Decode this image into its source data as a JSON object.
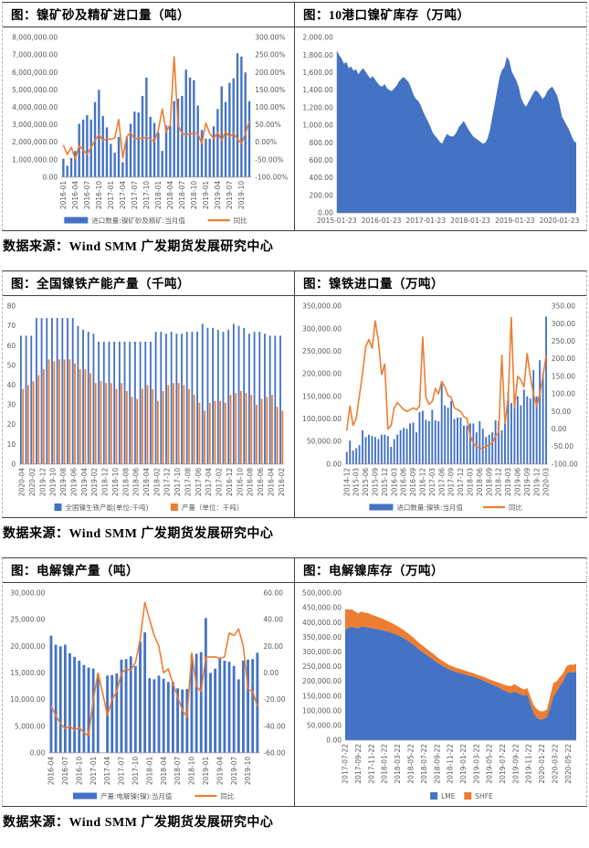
{
  "page": {
    "source_label": "数据来源：Wind SMM 广发期货发展研究中心",
    "colors": {
      "bar_blue": "#4472C4",
      "line_orange": "#ED7D31",
      "axis_text": "#595959"
    }
  },
  "charts": [
    {
      "title": "图：镍矿砂及精矿进口量（吨）",
      "chart_data": {
        "type": "bar-line",
        "bar_color": "#4472C4",
        "line_color": "#ED7D31",
        "left_axis": {
          "min": 0,
          "max": 8000000,
          "step": 1000000,
          "format": "num2"
        },
        "right_axis": {
          "min": -100,
          "max": 300,
          "step": 50,
          "format": "pct2"
        },
        "tick_every": 3,
        "x_tick_labels": [
          "2016-01",
          "2016-04",
          "2016-07",
          "2016-10",
          "2017-01",
          "2017-04",
          "2017-07",
          "2017-10",
          "2018-01",
          "2018-04",
          "2018-07",
          "2018-10",
          "2019-01",
          "2019-04",
          "2019-07",
          "2019-10"
        ],
        "bars": [
          1050000,
          650000,
          1100000,
          1500000,
          3050000,
          3300000,
          3550000,
          3300000,
          4300000,
          5000000,
          3500000,
          2850000,
          1900000,
          1400000,
          2300000,
          850000,
          2300000,
          3050000,
          3750000,
          3700000,
          4650000,
          5700000,
          3450000,
          3100000,
          2550000,
          1500000,
          2950000,
          2950000,
          4350000,
          4500000,
          4650000,
          6150000,
          5700000,
          5550000,
          4100000,
          2700000,
          2200000,
          2200000,
          2900000,
          3900000,
          5200000,
          4300000,
          5400000,
          5650000,
          7100000,
          6900000,
          6000000,
          4350000
        ],
        "line": [
          -8,
          -35,
          -15,
          -48,
          -10,
          -22,
          -35,
          -15,
          5,
          22,
          5,
          10,
          8,
          12,
          65,
          -45,
          15,
          28,
          8,
          12,
          10,
          15,
          8,
          2,
          35,
          95,
          30,
          50,
          245,
          48,
          25,
          20,
          25,
          25,
          25,
          -5,
          55,
          25,
          10,
          28,
          5,
          30,
          15,
          25,
          10,
          -5,
          25,
          60
        ],
        "legend": [
          {
            "swatch": "bar",
            "color": "#4472C4",
            "label": "进口数量:镍矿砂及精矿:当月值"
          },
          {
            "swatch": "line",
            "color": "#ED7D31",
            "label": "同比"
          }
        ]
      }
    },
    {
      "title": "图：10港口镍矿库存（万吨）",
      "chart_data": {
        "type": "area",
        "fill_color": "#4472C4",
        "left_axis": {
          "min": 0,
          "max": 2000,
          "step": 200,
          "format": "num2"
        },
        "x_rot": false,
        "x_ticks": [
          {
            "p": 0.0,
            "label": "2015-01-23"
          },
          {
            "p": 0.186,
            "label": "2016-01-23"
          },
          {
            "p": 0.372,
            "label": "2017-01-23"
          },
          {
            "p": 0.558,
            "label": "2018-01-23"
          },
          {
            "p": 0.744,
            "label": "2019-01-23"
          },
          {
            "p": 0.93,
            "label": "2020-01-23"
          }
        ],
        "values": [
          1850,
          1800,
          1760,
          1700,
          1720,
          1650,
          1670,
          1620,
          1640,
          1580,
          1620,
          1650,
          1610,
          1570,
          1530,
          1560,
          1520,
          1480,
          1450,
          1440,
          1470,
          1420,
          1400,
          1390,
          1420,
          1450,
          1500,
          1530,
          1550,
          1520,
          1490,
          1430,
          1350,
          1300,
          1280,
          1230,
          1160,
          1100,
          1050,
          990,
          920,
          880,
          850,
          810,
          790,
          850,
          900,
          880,
          870,
          880,
          920,
          980,
          1010,
          1050,
          1000,
          950,
          910,
          870,
          850,
          830,
          810,
          790,
          800,
          850,
          950,
          1100,
          1250,
          1400,
          1550,
          1630,
          1660,
          1780,
          1740,
          1620,
          1560,
          1510,
          1430,
          1310,
          1250,
          1210,
          1260,
          1310,
          1360,
          1400,
          1380,
          1340,
          1300,
          1330,
          1390,
          1420,
          1440,
          1390,
          1340,
          1240,
          1100,
          1050,
          1000,
          950,
          880,
          820,
          800
        ]
      }
    },
    {
      "title": "图：全国镍铁产能产量（千吨）",
      "chart_data": {
        "type": "grouped-bar",
        "left_axis": {
          "min": 0,
          "max": 80,
          "step": 10,
          "format": "int"
        },
        "tick_every": 2,
        "x_tick_labels": [
          "2020-04",
          "2020-02",
          "2019-12",
          "2019-10",
          "2019-08",
          "2019-06",
          "2019-04",
          "2019-02",
          "2018-12",
          "2018-10",
          "2018-08",
          "2018-06",
          "2018-04",
          "2018-02",
          "2017-12",
          "2017-10",
          "2017-08",
          "2017-06",
          "2017-04",
          "2017-02",
          "2016-12",
          "2016-10",
          "2016-08",
          "2016-06",
          "2016-04",
          "2016-02"
        ],
        "series": [
          {
            "name": "全国镍生铁产能(单位:千吨)",
            "color": "#4472C4",
            "values": [
              65,
              65,
              65,
              74,
              74,
              74,
              74,
              74,
              74,
              74,
              74,
              70,
              68,
              67,
              66,
              62,
              62,
              62,
              62,
              62,
              62,
              62,
              62,
              62,
              62,
              62,
              67,
              67,
              66,
              67,
              66,
              66,
              67,
              67,
              67,
              71,
              69,
              69,
              68,
              67,
              68,
              71,
              70,
              69,
              66,
              67,
              67,
              66,
              65,
              65,
              65
            ]
          },
          {
            "name": "产量（单位：千吨）",
            "color": "#ED7D31",
            "values": [
              38,
              40,
              42,
              45,
              48,
              53,
              52,
              53,
              53,
              53,
              51,
              48,
              48,
              46,
              41,
              42,
              41,
              41,
              38,
              41,
              37,
              34,
              33,
              38,
              40,
              38,
              32,
              37,
              40,
              41,
              41,
              40,
              38,
              35,
              31,
              27,
              31,
              32,
              32,
              31,
              35,
              36,
              37,
              36,
              35,
              30,
              33,
              34,
              35,
              29,
              27
            ]
          }
        ],
        "legend": [
          {
            "swatch": "sq",
            "color": "#4472C4",
            "label": "全国镍生铁产能(单位:千吨)"
          },
          {
            "swatch": "sq",
            "color": "#ED7D31",
            "label": "产量（单位：千吨）"
          }
        ]
      }
    },
    {
      "title": "图：镍铁进口量（万吨）",
      "chart_data": {
        "type": "bar-line",
        "bar_color": "#4472C4",
        "line_color": "#ED7D31",
        "left_axis": {
          "min": 0,
          "max": 350000,
          "step": 50000,
          "format": "num2"
        },
        "right_axis": {
          "min": -100,
          "max": 350,
          "step": 50,
          "format": "num2"
        },
        "tick_every": 3,
        "x_tick_labels": [
          "2014-12",
          "2015-03",
          "2015-06",
          "2015-09",
          "2015-12",
          "2016-03",
          "2016-06",
          "2016-09",
          "2016-12",
          "2017-03",
          "2017-06",
          "2017-09",
          "2017-12",
          "2018-03",
          "2018-06",
          "2018-09",
          "2018-12",
          "2019-03",
          "2019-06",
          "2019-09",
          "2019-12",
          "2020-03"
        ],
        "bars": [
          27000,
          52000,
          30000,
          35000,
          42000,
          75000,
          60000,
          65000,
          62000,
          60000,
          55000,
          65000,
          65000,
          62000,
          38000,
          55000,
          65000,
          75000,
          80000,
          78000,
          90000,
          92000,
          70000,
          115000,
          118000,
          98000,
          95000,
          120000,
          97000,
          95000,
          183000,
          130000,
          125000,
          140000,
          100000,
          103000,
          103000,
          85000,
          85000,
          90000,
          90000,
          70000,
          95000,
          78000,
          60000,
          65000,
          70000,
          97000,
          95000,
          75000,
          90000,
          160000,
          135000,
          152000,
          150000,
          130000,
          165000,
          150000,
          145000,
          208000,
          150000,
          230000,
          200000,
          327000
        ],
        "line": [
          -5,
          65,
          10,
          30,
          95,
          160,
          235,
          255,
          230,
          308,
          250,
          155,
          185,
          0,
          10,
          60,
          75,
          65,
          55,
          50,
          55,
          60,
          55,
          65,
          262,
          90,
          70,
          78,
          115,
          100,
          135,
          120,
          95,
          90,
          60,
          55,
          50,
          35,
          30,
          -20,
          -40,
          -50,
          -55,
          -55,
          -50,
          -45,
          -40,
          -20,
          -10,
          210,
          15,
          90,
          318,
          60,
          150,
          140,
          120,
          215,
          150,
          100,
          65,
          100,
          150,
          210
        ],
        "legend": [
          {
            "swatch": "bar",
            "color": "#4472C4",
            "label": "进口数量:镍铁:当月值"
          },
          {
            "swatch": "line",
            "color": "#ED7D31",
            "label": "同比"
          }
        ]
      }
    },
    {
      "title": "图：电解镍产量（吨）",
      "chart_data": {
        "type": "bar-line",
        "bar_color": "#4472C4",
        "line_color": "#ED7D31",
        "left_axis": {
          "min": 0,
          "max": 30000,
          "step": 5000,
          "format": "num2"
        },
        "right_axis": {
          "min": -60,
          "max": 60,
          "step": 20,
          "format": "num2"
        },
        "tick_every": 3,
        "x_tick_labels": [
          "2016-04",
          "2016-07",
          "2016-10",
          "2017-01",
          "2017-04",
          "2017-07",
          "2017-10",
          "2018-01",
          "2018-04",
          "2018-07",
          "2018-10",
          "2019-01",
          "2019-04",
          "2019-07",
          "2019-10"
        ],
        "bars": [
          22000,
          20300,
          20000,
          20300,
          18700,
          18000,
          17300,
          16500,
          16000,
          15800,
          14800,
          0,
          14500,
          14600,
          14900,
          17500,
          17600,
          18100,
          16300,
          20900,
          22600,
          14000,
          13800,
          14500,
          13900,
          13300,
          13300,
          12100,
          11900,
          12000,
          18300,
          18600,
          18900,
          25300,
          15000,
          15800,
          17700,
          17300,
          17100,
          16300,
          13800,
          17300,
          17500,
          17600,
          18800
        ],
        "line": [
          -25,
          -32,
          -38,
          -42,
          -40,
          -43,
          -41,
          -45,
          -47,
          -20,
          0,
          -15,
          -32,
          -20,
          -14,
          0,
          3,
          2,
          8,
          25,
          53,
          40,
          28,
          20,
          0,
          3,
          -8,
          -18,
          -28,
          -33,
          15,
          -10,
          -14,
          12,
          12,
          12,
          11,
          12,
          30,
          28,
          33,
          20,
          -12,
          -14,
          -25
        ],
        "legend": [
          {
            "swatch": "bar",
            "color": "#4472C4",
            "label": "产量:电解镍(镍):当月值"
          },
          {
            "swatch": "line",
            "color": "#ED7D31",
            "label": "同比"
          }
        ]
      }
    },
    {
      "title": "图：电解镍库存（万吨）",
      "chart_data": {
        "type": "stacked-area",
        "left_axis": {
          "min": 0,
          "max": 500000,
          "step": 50000,
          "format": "num2"
        },
        "x_ticks": [
          {
            "p": 0.0,
            "label": "2017-07-22"
          },
          {
            "p": 0.057,
            "label": "2017-09-22"
          },
          {
            "p": 0.114,
            "label": "2017-11-22"
          },
          {
            "p": 0.17,
            "label": "2018-01-22"
          },
          {
            "p": 0.227,
            "label": "2018-03-22"
          },
          {
            "p": 0.284,
            "label": "2018-05-22"
          },
          {
            "p": 0.341,
            "label": "2018-07-22"
          },
          {
            "p": 0.398,
            "label": "2018-09-22"
          },
          {
            "p": 0.455,
            "label": "2018-11-22"
          },
          {
            "p": 0.511,
            "label": "2019-01-22"
          },
          {
            "p": 0.568,
            "label": "2019-03-22"
          },
          {
            "p": 0.625,
            "label": "2019-05-22"
          },
          {
            "p": 0.682,
            "label": "2019-07-22"
          },
          {
            "p": 0.739,
            "label": "2019-09-22"
          },
          {
            "p": 0.795,
            "label": "2019-11-22"
          },
          {
            "p": 0.852,
            "label": "2020-01-22"
          },
          {
            "p": 0.909,
            "label": "2020-03-22"
          },
          {
            "p": 0.966,
            "label": "2020-05-22"
          }
        ],
        "series": [
          {
            "name": "LME",
            "color": "#4472C4",
            "values": [
              375000,
              382000,
              386000,
              383000,
              380000,
              386000,
              385000,
              383000,
              381000,
              379000,
              377000,
              375000,
              372000,
              369000,
              366000,
              362000,
              358000,
              353000,
              347000,
              340000,
              332000,
              324000,
              315000,
              306000,
              298000,
              290000,
              282000,
              274000,
              266000,
              258000,
              252000,
              246000,
              240000,
              236000,
              232000,
              229000,
              226000,
              223000,
              220000,
              217000,
              213000,
              209000,
              205000,
              200000,
              195000,
              190000,
              185000,
              180000,
              174000,
              168000,
              163000,
              160000,
              165000,
              160000,
              155000,
              152000,
              155000,
              120000,
              90000,
              75000,
              70000,
              72000,
              80000,
              110000,
              150000,
              165000,
              185000,
              200000,
              225000,
              232000,
              230000,
              233000
            ]
          },
          {
            "name": "SHFE",
            "color": "#ED7D31",
            "values": [
              70000,
              62000,
              58000,
              55000,
              50000,
              52000,
              48000,
              50000,
              46000,
              44000,
              42000,
              40000,
              38000,
              36000,
              34000,
              32000,
              30000,
              28000,
              27000,
              26000,
              25000,
              24000,
              23000,
              22000,
              22000,
              21000,
              20000,
              20000,
              19000,
              18000,
              17000,
              16000,
              15000,
              15000,
              14000,
              14000,
              13000,
              13000,
              12000,
              12000,
              12000,
              12000,
              12000,
              13000,
              13000,
              14000,
              15000,
              16000,
              18000,
              20000,
              22000,
              24000,
              25000,
              24000,
              22000,
              20000,
              22000,
              25000,
              28000,
              30000,
              28000,
              26000,
              24000,
              40000,
              45000,
              35000,
              30000,
              28000,
              26000,
              25000,
              26000,
              27000
            ]
          }
        ],
        "legend": [
          {
            "swatch": "sq",
            "color": "#4472C4",
            "label": "LME"
          },
          {
            "swatch": "sq",
            "color": "#ED7D31",
            "label": "SHFE"
          }
        ]
      }
    }
  ]
}
